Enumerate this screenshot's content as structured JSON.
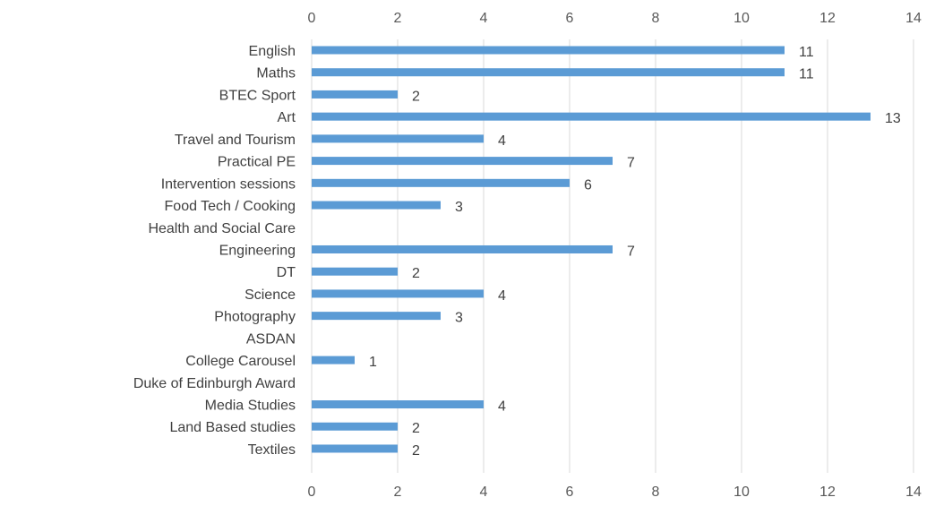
{
  "chart_data": {
    "type": "bar",
    "orientation": "horizontal",
    "title": "",
    "xlabel": "",
    "ylabel": "",
    "xlim": [
      0,
      14
    ],
    "x_ticks": [
      0,
      2,
      4,
      6,
      8,
      10,
      12,
      14
    ],
    "x_axis_position": "top-and-bottom",
    "grid": true,
    "bar_color": "#5b9bd5",
    "categories": [
      "English",
      "Maths",
      "BTEC Sport",
      "Art",
      "Travel and Tourism",
      "Practical PE",
      "Intervention sessions",
      "Food Tech / Cooking",
      "Health and Social Care",
      "Engineering",
      "DT",
      "Science",
      "Photography",
      "ASDAN",
      "College Carousel",
      "Duke of Edinburgh Award",
      "Media Studies",
      "Land Based studies",
      "Textiles"
    ],
    "values": [
      11,
      11,
      2,
      13,
      4,
      7,
      6,
      3,
      null,
      7,
      2,
      4,
      3,
      null,
      1,
      null,
      4,
      2,
      2
    ]
  }
}
